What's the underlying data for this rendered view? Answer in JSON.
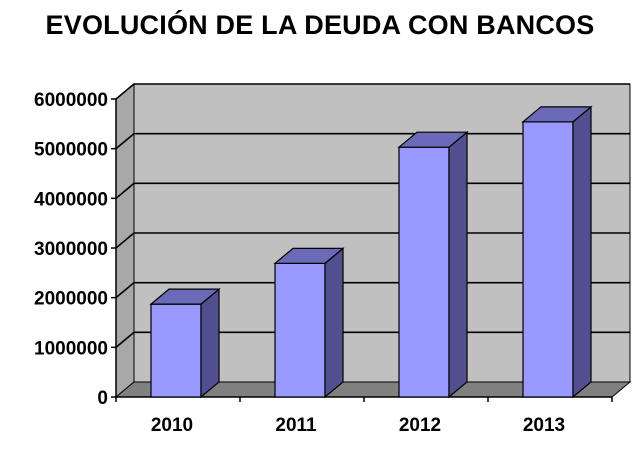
{
  "chart_data": {
    "type": "bar",
    "title": "EVOLUCIÓN DE LA DEUDA CON BANCOS",
    "xlabel": "",
    "ylabel": "",
    "categories": [
      "2010",
      "2011",
      "2012",
      "2013"
    ],
    "values": [
      1870000,
      2690000,
      5030000,
      5540000
    ],
    "ylim": [
      0,
      6000000
    ],
    "yticks": [
      "0",
      "1000000",
      "2000000",
      "3000000",
      "4000000",
      "5000000",
      "6000000"
    ],
    "style": "3d",
    "grid": true,
    "legend": "none",
    "colors": {
      "bar_front": "#9999ff",
      "bar_side": "#505090",
      "bar_top": "#6a6ab8",
      "back_wall": "#c0c0c0",
      "floor": "#808080",
      "gridline": "#000000"
    }
  }
}
